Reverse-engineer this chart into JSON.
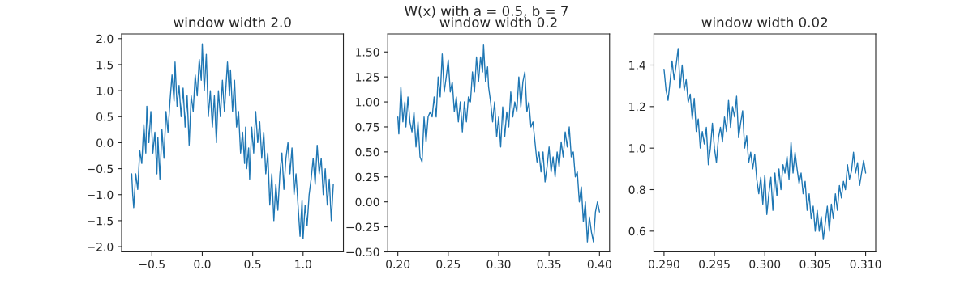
{
  "chart_data": [
    {
      "type": "line",
      "title": "window width 2.0",
      "x": [
        -0.7,
        -0.69,
        -0.68,
        -0.66,
        -0.64,
        -0.62,
        -0.6,
        -0.58,
        -0.56,
        -0.55,
        -0.53,
        -0.51,
        -0.49,
        -0.47,
        -0.45,
        -0.44,
        -0.42,
        -0.4,
        -0.38,
        -0.36,
        -0.34,
        -0.32,
        -0.3,
        -0.28,
        -0.27,
        -0.25,
        -0.23,
        -0.21,
        -0.19,
        -0.17,
        -0.15,
        -0.13,
        -0.11,
        -0.09,
        -0.07,
        -0.05,
        -0.03,
        -0.01,
        0.0,
        0.02,
        0.04,
        0.06,
        0.08,
        0.1,
        0.12,
        0.14,
        0.16,
        0.18,
        0.2,
        0.22,
        0.25,
        0.27,
        0.28,
        0.3,
        0.32,
        0.34,
        0.36,
        0.38,
        0.4,
        0.42,
        0.43,
        0.44,
        0.46,
        0.47,
        0.49,
        0.51,
        0.53,
        0.55,
        0.57,
        0.59,
        0.61,
        0.63,
        0.65,
        0.67,
        0.69,
        0.71,
        0.73,
        0.75,
        0.77,
        0.79,
        0.81,
        0.83,
        0.85,
        0.87,
        0.89,
        0.91,
        0.93,
        0.95,
        0.97,
        0.99,
        1.0,
        1.02,
        1.04,
        1.06,
        1.08,
        1.1,
        1.12,
        1.14,
        1.16,
        1.18,
        1.2,
        1.22,
        1.24,
        1.26,
        1.28,
        1.3
      ],
      "series": [
        {
          "color": "#1f77b4",
          "values": [
            -0.6,
            -1.0,
            -1.25,
            -0.6,
            -0.9,
            -0.15,
            -0.4,
            0.35,
            -0.2,
            0.7,
            0.0,
            0.6,
            -0.2,
            0.2,
            -0.6,
            0.1,
            -0.7,
            0.25,
            -0.3,
            0.6,
            0.2,
            0.8,
            1.3,
            0.8,
            1.55,
            0.7,
            1.1,
            0.5,
            1.05,
            0.3,
            0.9,
            -0.05,
            0.9,
            0.6,
            1.3,
            0.9,
            1.6,
            1.2,
            1.9,
            1.0,
            1.7,
            0.5,
            1.0,
            0.3,
            0.9,
            0.0,
            1.0,
            0.5,
            1.2,
            0.6,
            1.55,
            0.9,
            1.4,
            0.6,
            1.2,
            0.3,
            0.6,
            -0.2,
            0.2,
            -0.4,
            0.3,
            -0.5,
            -0.1,
            -0.7,
            0.3,
            -0.2,
            0.6,
            0.0,
            0.4,
            -0.3,
            0.2,
            -0.6,
            -0.2,
            -1.2,
            -0.6,
            -1.5,
            -0.8,
            -1.3,
            -0.6,
            -0.2,
            -0.9,
            -0.3,
            0.0,
            -0.6,
            -0.1,
            -1.0,
            -0.6,
            -1.2,
            -1.8,
            -1.1,
            -1.85,
            -1.2,
            -1.6,
            -1.0,
            -0.7,
            -0.3,
            -0.8,
            -0.05,
            -0.6,
            -0.3,
            -1.0,
            -0.5,
            -1.2,
            -0.7,
            -1.5,
            -0.8
          ]
        }
      ],
      "xlim": [
        -0.8,
        1.4
      ],
      "ylim": [
        -2.1,
        2.09
      ],
      "xticks": [
        {
          "value": -0.5,
          "label": "−0.5"
        },
        {
          "value": 0,
          "label": "0.0"
        },
        0.5,
        {
          "value": 1,
          "label": "1.0"
        }
      ],
      "yticks": [
        {
          "value": -2,
          "label": "−2.0"
        },
        {
          "value": -1.5,
          "label": "−1.5"
        },
        {
          "value": -1,
          "label": "−1.0"
        },
        {
          "value": -0.5,
          "label": "−0.5"
        },
        {
          "value": 0,
          "label": "0.0"
        },
        0.5,
        {
          "value": 1,
          "label": "1.0"
        },
        1.5,
        {
          "value": 2,
          "label": "2.0"
        }
      ],
      "grid": false,
      "legend": false
    },
    {
      "type": "line",
      "title": "window width 0.2",
      "x": [
        0.2,
        0.201,
        0.203,
        0.205,
        0.207,
        0.208,
        0.21,
        0.212,
        0.214,
        0.216,
        0.218,
        0.22,
        0.222,
        0.224,
        0.226,
        0.228,
        0.23,
        0.232,
        0.234,
        0.236,
        0.238,
        0.24,
        0.242,
        0.244,
        0.246,
        0.248,
        0.25,
        0.252,
        0.254,
        0.256,
        0.258,
        0.26,
        0.262,
        0.264,
        0.266,
        0.268,
        0.27,
        0.272,
        0.274,
        0.276,
        0.278,
        0.28,
        0.282,
        0.284,
        0.285,
        0.287,
        0.289,
        0.29,
        0.292,
        0.294,
        0.296,
        0.298,
        0.3,
        0.302,
        0.304,
        0.306,
        0.308,
        0.31,
        0.312,
        0.314,
        0.316,
        0.318,
        0.32,
        0.322,
        0.324,
        0.326,
        0.328,
        0.33,
        0.332,
        0.334,
        0.336,
        0.338,
        0.34,
        0.342,
        0.344,
        0.346,
        0.348,
        0.35,
        0.352,
        0.354,
        0.356,
        0.358,
        0.36,
        0.362,
        0.364,
        0.366,
        0.368,
        0.37,
        0.372,
        0.374,
        0.376,
        0.378,
        0.38,
        0.382,
        0.384,
        0.386,
        0.388,
        0.39,
        0.392,
        0.394,
        0.396,
        0.398,
        0.4
      ],
      "series": [
        {
          "color": "#1f77b4",
          "values": [
            0.85,
            0.68,
            1.15,
            0.8,
            1.0,
            0.75,
            1.05,
            0.8,
            0.7,
            0.9,
            0.55,
            0.8,
            0.45,
            0.4,
            0.85,
            0.6,
            0.85,
            0.9,
            0.85,
            1.05,
            0.85,
            1.25,
            1.05,
            1.48,
            1.1,
            1.25,
            1.42,
            1.1,
            1.2,
            0.9,
            1.05,
            0.8,
            1.0,
            0.7,
            1.0,
            0.8,
            1.05,
            1.0,
            1.3,
            1.1,
            1.45,
            1.2,
            1.45,
            1.3,
            1.57,
            1.2,
            1.35,
            1.15,
            1.0,
            0.8,
            1.0,
            0.65,
            0.85,
            0.55,
            0.95,
            0.65,
            0.9,
            0.75,
            1.1,
            0.85,
            1.0,
            0.9,
            1.25,
            0.95,
            1.2,
            1.3,
            0.9,
            1.0,
            0.75,
            0.8,
            0.6,
            0.4,
            0.5,
            0.3,
            0.5,
            0.2,
            0.35,
            0.55,
            0.3,
            0.45,
            0.25,
            0.5,
            0.35,
            0.6,
            0.45,
            0.7,
            0.55,
            0.75,
            0.45,
            0.5,
            0.25,
            0.3,
            0.0,
            0.15,
            -0.2,
            0.0,
            -0.4,
            -0.15,
            -0.3,
            -0.4,
            -0.1,
            0.0,
            -0.1
          ]
        }
      ],
      "xlim": [
        0.19,
        0.41
      ],
      "ylim": [
        -0.5,
        1.68
      ],
      "xticks": [
        {
          "value": 0.2,
          "label": "0.20"
        },
        0.25,
        {
          "value": 0.3,
          "label": "0.30"
        },
        0.35,
        {
          "value": 0.4,
          "label": "0.40"
        }
      ],
      "yticks": [
        {
          "value": -0.5,
          "label": "−0.50"
        },
        {
          "value": -0.25,
          "label": "−0.25"
        },
        {
          "value": 0,
          "label": "0.00"
        },
        0.25,
        {
          "value": 0.5,
          "label": "0.50"
        },
        0.75,
        {
          "value": 1,
          "label": "1.00"
        },
        1.25,
        {
          "value": 1.5,
          "label": "1.50"
        }
      ],
      "grid": false,
      "legend": false
    },
    {
      "type": "line",
      "title": "window width 0.02",
      "x": [
        0.29,
        0.2902,
        0.2904,
        0.2906,
        0.2908,
        0.291,
        0.2912,
        0.2914,
        0.2916,
        0.2918,
        0.292,
        0.2922,
        0.2924,
        0.2926,
        0.2928,
        0.293,
        0.2932,
        0.2934,
        0.2936,
        0.2938,
        0.294,
        0.2942,
        0.2944,
        0.2946,
        0.2948,
        0.295,
        0.2952,
        0.2954,
        0.2956,
        0.2958,
        0.296,
        0.2962,
        0.2964,
        0.2966,
        0.2968,
        0.297,
        0.2972,
        0.2974,
        0.2976,
        0.2978,
        0.298,
        0.2982,
        0.2984,
        0.2986,
        0.2988,
        0.299,
        0.2992,
        0.2994,
        0.2996,
        0.2998,
        0.3,
        0.3002,
        0.3004,
        0.3006,
        0.3008,
        0.301,
        0.3012,
        0.3014,
        0.3016,
        0.3018,
        0.302,
        0.3022,
        0.3024,
        0.3026,
        0.3028,
        0.303,
        0.3032,
        0.3034,
        0.3036,
        0.3038,
        0.304,
        0.3042,
        0.3044,
        0.3046,
        0.3048,
        0.305,
        0.3052,
        0.3054,
        0.3056,
        0.3058,
        0.306,
        0.3062,
        0.3064,
        0.3066,
        0.3068,
        0.307,
        0.3072,
        0.3074,
        0.3076,
        0.3078,
        0.308,
        0.3082,
        0.3084,
        0.3086,
        0.3088,
        0.309,
        0.3092,
        0.3094,
        0.3096,
        0.3098,
        0.31
      ],
      "series": [
        {
          "color": "#1f77b4",
          "values": [
            1.38,
            1.28,
            1.23,
            1.32,
            1.42,
            1.33,
            1.4,
            1.48,
            1.29,
            1.4,
            1.28,
            1.33,
            1.22,
            1.26,
            1.14,
            1.24,
            1.08,
            1.14,
            1.0,
            1.08,
            1.02,
            1.1,
            0.92,
            1.0,
            1.12,
            1.0,
            0.93,
            1.05,
            1.1,
            1.03,
            1.15,
            1.08,
            1.23,
            1.1,
            1.2,
            1.15,
            1.25,
            1.05,
            1.12,
            1.18,
            1.0,
            1.06,
            0.93,
            0.98,
            0.9,
            0.97,
            0.85,
            0.78,
            0.86,
            0.73,
            0.87,
            0.68,
            0.78,
            0.86,
            0.7,
            0.88,
            0.77,
            0.9,
            0.8,
            0.92,
            0.88,
            0.96,
            0.85,
            1.03,
            0.88,
            0.98,
            0.9,
            0.83,
            0.88,
            0.78,
            0.84,
            0.7,
            0.78,
            0.66,
            0.72,
            0.6,
            0.7,
            0.6,
            0.67,
            0.56,
            0.64,
            0.72,
            0.6,
            0.73,
            0.66,
            0.78,
            0.7,
            0.82,
            0.76,
            0.84,
            0.8,
            0.92,
            0.85,
            0.89,
            0.98,
            0.88,
            0.93,
            0.82,
            0.88,
            0.94,
            0.88
          ]
        }
      ],
      "xlim": [
        0.289,
        0.311
      ],
      "ylim": [
        0.5,
        1.55
      ],
      "xticks": [
        {
          "value": 0.29,
          "label": "0.290"
        },
        0.295,
        {
          "value": 0.3,
          "label": "0.300"
        },
        0.305,
        {
          "value": 0.31,
          "label": "0.310"
        }
      ],
      "yticks": [
        0.6,
        0.8,
        {
          "value": 1,
          "label": "1.0"
        },
        1.2,
        1.4
      ],
      "grid": false,
      "legend": false,
      "annotations": [
        "W(x) with a = 0.5, b = 7"
      ]
    }
  ]
}
